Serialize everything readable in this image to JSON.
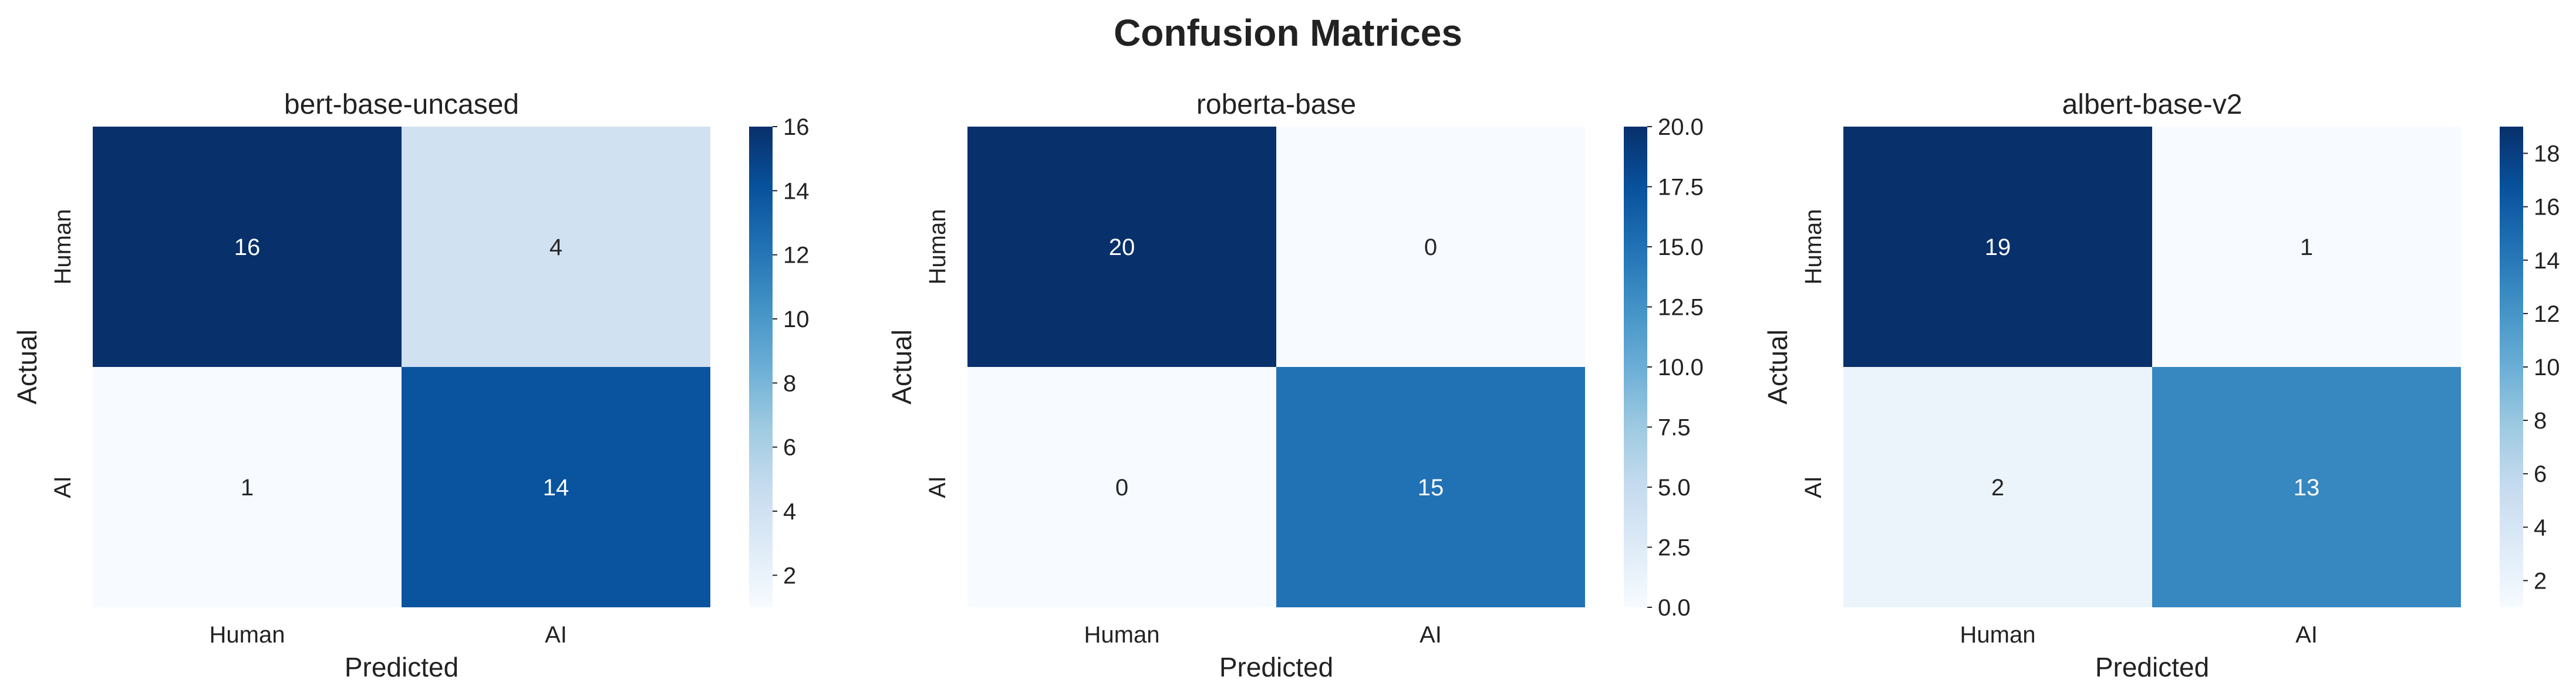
{
  "title": "Confusion Matrices",
  "chart_data": [
    {
      "type": "heatmap",
      "title": "bert-base-uncased",
      "xlabel": "Predicted",
      "ylabel": "Actual",
      "x_categories": [
        "Human",
        "AI"
      ],
      "y_categories": [
        "Human",
        "AI"
      ],
      "values": [
        [
          16,
          4
        ],
        [
          1,
          14
        ]
      ],
      "colormap": "Blues",
      "color_range": [
        1,
        16
      ],
      "colorbar_ticks": [
        "2",
        "4",
        "6",
        "8",
        "10",
        "12",
        "14",
        "16"
      ]
    },
    {
      "type": "heatmap",
      "title": "roberta-base",
      "xlabel": "Predicted",
      "ylabel": "Actual",
      "x_categories": [
        "Human",
        "AI"
      ],
      "y_categories": [
        "Human",
        "AI"
      ],
      "values": [
        [
          20,
          0
        ],
        [
          0,
          15
        ]
      ],
      "colormap": "Blues",
      "color_range": [
        0,
        20
      ],
      "colorbar_ticks": [
        "0.0",
        "2.5",
        "5.0",
        "7.5",
        "10.0",
        "12.5",
        "15.0",
        "17.5",
        "20.0"
      ]
    },
    {
      "type": "heatmap",
      "title": "albert-base-v2",
      "xlabel": "Predicted",
      "ylabel": "Actual",
      "x_categories": [
        "Human",
        "AI"
      ],
      "y_categories": [
        "Human",
        "AI"
      ],
      "values": [
        [
          19,
          1
        ],
        [
          2,
          13
        ]
      ],
      "colormap": "Blues",
      "color_range": [
        1,
        19
      ],
      "colorbar_ticks": [
        "2",
        "4",
        "6",
        "8",
        "10",
        "12",
        "14",
        "16",
        "18"
      ]
    }
  ]
}
